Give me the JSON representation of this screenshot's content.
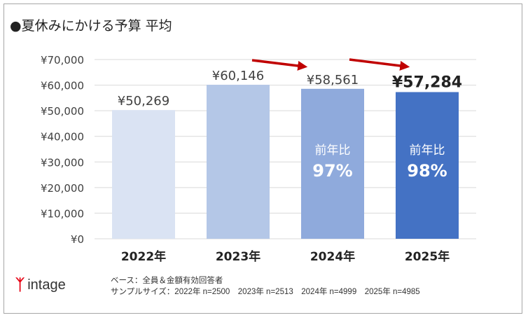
{
  "chart_data": {
    "type": "bar",
    "title": "●夏休みにかける予算 平均",
    "categories": [
      "2022年",
      "2023年",
      "2024年",
      "2025年"
    ],
    "values": [
      50269,
      60146,
      58561,
      57284
    ],
    "data_labels": [
      "¥50,269",
      "¥60,146",
      "¥58,561",
      "¥57,284"
    ],
    "inner_labels": [
      null,
      null,
      {
        "line1": "前年比",
        "line2": "97%"
      },
      {
        "line1": "前年比",
        "line2": "98%"
      }
    ],
    "colors": [
      "#dae3f3",
      "#b4c7e7",
      "#8faadc",
      "#4472c4"
    ],
    "ylim": [
      0,
      70000
    ],
    "yticks": [
      "¥0",
      "¥10,000",
      "¥20,000",
      "¥30,000",
      "¥40,000",
      "¥50,000",
      "¥60,000",
      "¥70,000"
    ],
    "grid": true,
    "annotations": {
      "arrows": "red arrows from 2023 to 2024 and 2024 to 2025 indicating decline",
      "arrow_color": "#c00000"
    }
  },
  "logo": {
    "mark": "虻",
    "text": "intage"
  },
  "notes": {
    "base": "ベース：全員＆金額有効回答者",
    "sample": "サンプルサイズ：2022年 n=2500　2023年 n=2513　2024年 n=4999　2025年 n=4985"
  }
}
